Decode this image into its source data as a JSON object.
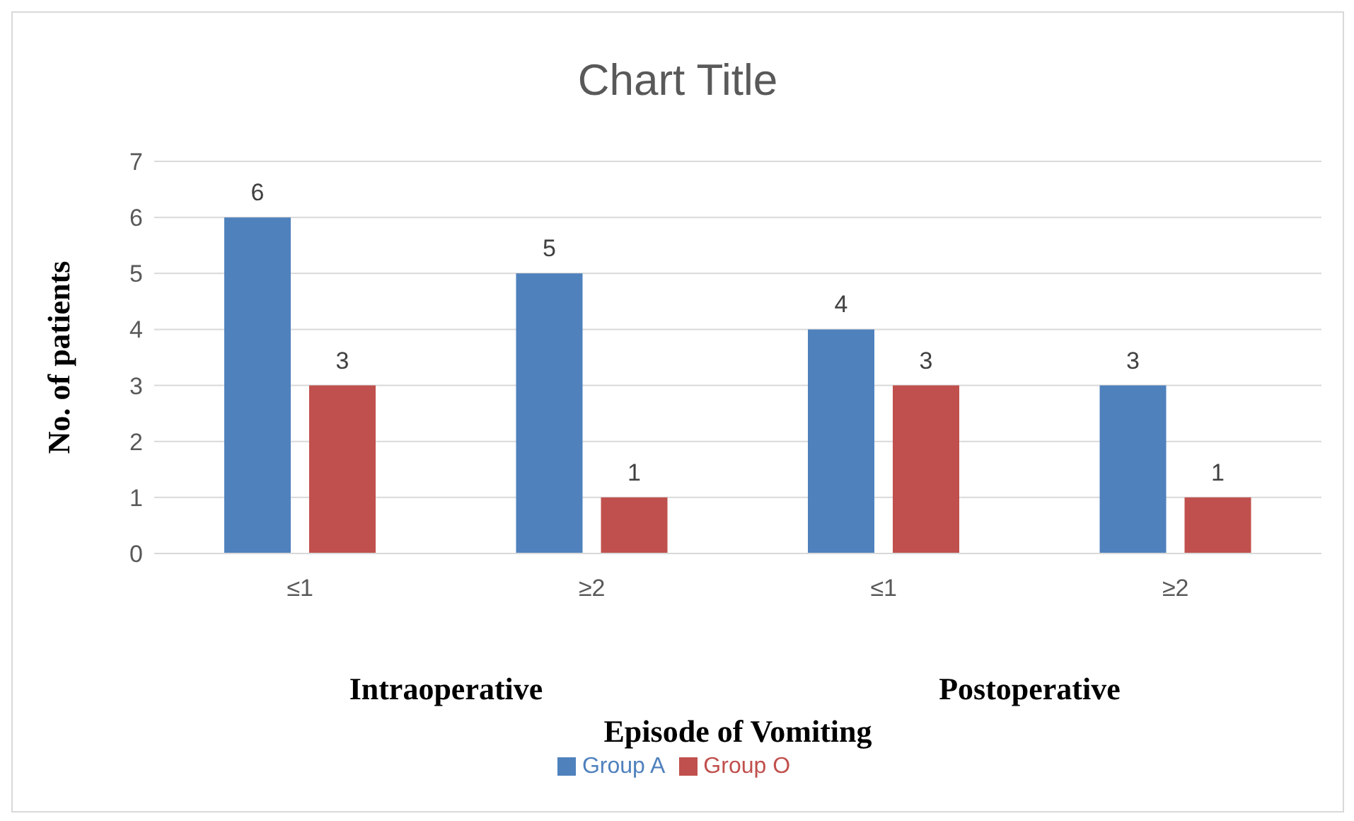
{
  "chart_data": {
    "type": "bar",
    "title": "Chart Title",
    "xlabel": "Episode of Vomiting",
    "ylabel": "No. of patients",
    "categories": [
      "≤1",
      "≥2",
      "≤1",
      "≥2"
    ],
    "series": [
      {
        "name": "Group A",
        "color": "#4f81bd",
        "values": [
          6,
          5,
          4,
          3
        ]
      },
      {
        "name": "Group O",
        "color": "#c0504d",
        "values": [
          3,
          1,
          3,
          1
        ]
      }
    ],
    "ylim": [
      0,
      7
    ],
    "yticks": [
      0,
      1,
      2,
      3,
      4,
      5,
      6,
      7
    ],
    "grid": "y",
    "legend": "bottom",
    "data_labels": true,
    "annotations": [
      "Intraoperative",
      "Postoperative"
    ]
  }
}
